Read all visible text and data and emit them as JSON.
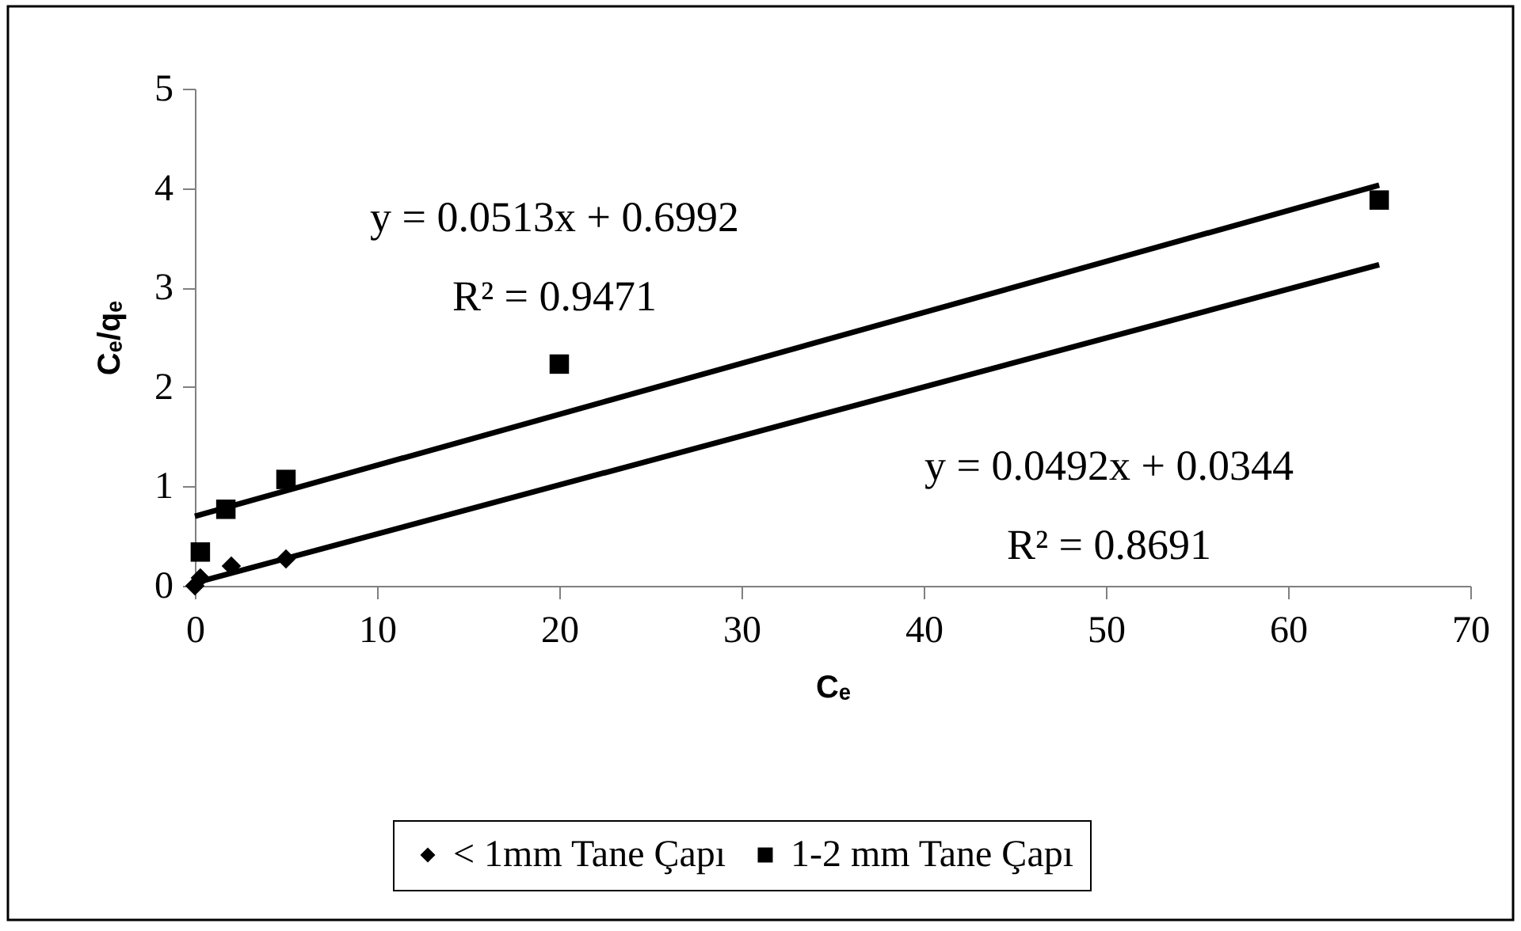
{
  "chart_data": {
    "type": "scatter",
    "xlabel": "Cₑ",
    "ylabel": "Cₑ/qₑ",
    "xlim": [
      0,
      70
    ],
    "xticks": [
      0,
      10,
      20,
      30,
      40,
      50,
      60,
      70
    ],
    "ylim": [
      0,
      5
    ],
    "yticks": [
      0,
      1,
      2,
      3,
      4,
      5
    ],
    "grid": false,
    "legend": "bottom",
    "series": [
      {
        "name": "< 1mm Tane Çapı",
        "color": "#000000",
        "marker": "diamond",
        "x": [
          0,
          0.3,
          2,
          5
        ],
        "values": [
          0.0,
          0.08,
          0.2,
          0.27
        ]
      },
      {
        "name": "1-2 mm Tane Çapı",
        "color": "#000000",
        "marker": "square",
        "x": [
          0.3,
          1.7,
          5,
          20,
          65
        ],
        "values": [
          0.34,
          0.77,
          1.07,
          2.23,
          3.88
        ]
      },
      {
        "type": "line",
        "color": "#000000",
        "line_style": "solid",
        "x": [
          0,
          65
        ],
        "values": [
          0.7,
          4.03
        ]
      },
      {
        "type": "line",
        "color": "#000000",
        "line_style": "solid",
        "x": [
          0,
          65
        ],
        "values": [
          0.03,
          3.23
        ]
      }
    ],
    "annotations": [
      "y = 0.0513x + 0.6992",
      "R² = 0.9471",
      "y = 0.0492x + 0.0344",
      "R² = 0.8691"
    ]
  }
}
